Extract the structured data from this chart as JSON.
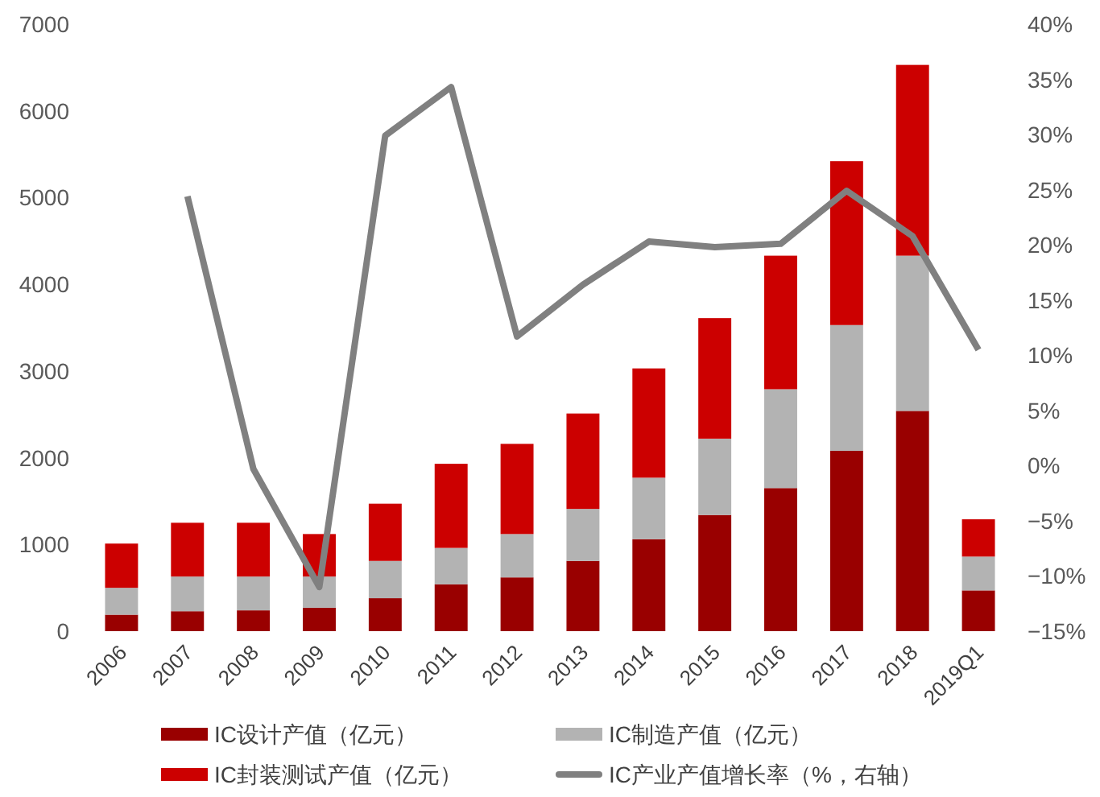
{
  "chart_data": {
    "type": "bar",
    "stacked": true,
    "categories": [
      "2006",
      "2007",
      "2008",
      "2009",
      "2010",
      "2011",
      "2012",
      "2013",
      "2014",
      "2015",
      "2016",
      "2017",
      "2018",
      "2019Q1"
    ],
    "series": [
      {
        "name": "IC设计产值（亿元）",
        "color": "#990000",
        "values": [
          190,
          230,
          240,
          270,
          380,
          540,
          620,
          810,
          1060,
          1340,
          1650,
          2080,
          2540,
          470
        ]
      },
      {
        "name": "IC制造产值（亿元）",
        "color": "#b3b3b3",
        "values": [
          310,
          400,
          390,
          360,
          430,
          420,
          500,
          600,
          710,
          880,
          1140,
          1450,
          1790,
          390
        ]
      },
      {
        "name": "IC封装测试产值（亿元）",
        "color": "#cc0000",
        "values": [
          510,
          620,
          620,
          490,
          660,
          970,
          1040,
          1100,
          1260,
          1390,
          1540,
          1890,
          2200,
          430
        ]
      },
      {
        "name": "IC产业产值增长率（%，右轴）",
        "type": "line",
        "axis": "y2",
        "color": "#808080",
        "values": [
          null,
          24.4,
          -0.3,
          -11.0,
          29.9,
          34.3,
          11.7,
          16.4,
          20.3,
          19.8,
          20.1,
          24.9,
          20.8,
          10.5
        ]
      }
    ],
    "ylim": [
      0,
      7000
    ],
    "yticks": [
      0,
      1000,
      2000,
      3000,
      4000,
      5000,
      6000,
      7000
    ],
    "y2lim": [
      -15,
      40
    ],
    "y2ticks": [
      {
        "value": -15,
        "label": "−15%"
      },
      {
        "value": -10,
        "label": "−10%"
      },
      {
        "value": -5,
        "label": "−5%"
      },
      {
        "value": 0,
        "label": "0%"
      },
      {
        "value": 5,
        "label": "5%"
      },
      {
        "value": 10,
        "label": "10%"
      },
      {
        "value": 15,
        "label": "15%"
      },
      {
        "value": 20,
        "label": "20%"
      },
      {
        "value": 25,
        "label": "25%"
      },
      {
        "value": 30,
        "label": "30%"
      },
      {
        "value": 35,
        "label": "35%"
      },
      {
        "value": 40,
        "label": "40%"
      }
    ],
    "grid": false,
    "legend": "bottom"
  }
}
